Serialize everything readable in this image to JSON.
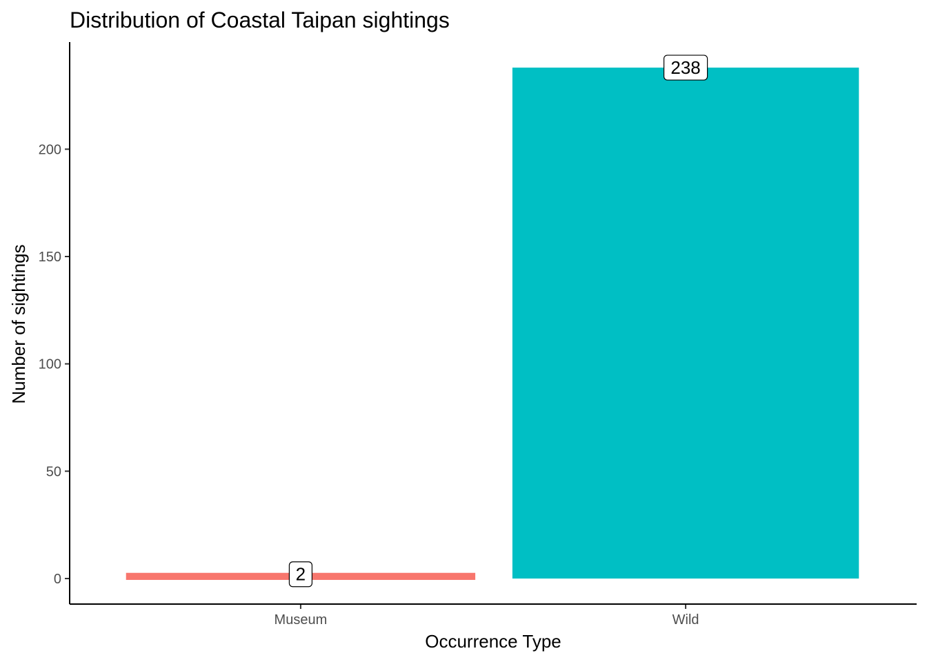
{
  "chart_data": {
    "type": "bar",
    "title": "Distribution of Coastal Taipan sightings",
    "xlabel": "Occurrence Type",
    "ylabel": "Number of sightings",
    "categories": [
      "Museum",
      "Wild"
    ],
    "values": [
      2,
      238
    ],
    "data_labels": [
      "2",
      "238"
    ],
    "colors": [
      "#F8766D",
      "#00BFC4"
    ],
    "ylim": [
      -11.9,
      249.9
    ],
    "yticks": [
      0,
      50,
      100,
      150,
      200
    ],
    "ytick_labels": [
      "0",
      "50",
      "100",
      "150",
      "200"
    ],
    "grid": false,
    "legend": "none"
  }
}
